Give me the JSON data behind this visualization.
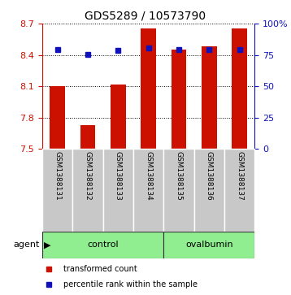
{
  "title": "GDS5289 / 10573790",
  "samples": [
    "GSM1388131",
    "GSM1388132",
    "GSM1388133",
    "GSM1388134",
    "GSM1388135",
    "GSM1388136",
    "GSM1388137"
  ],
  "bar_values": [
    8.1,
    7.73,
    8.12,
    8.65,
    8.45,
    8.48,
    8.65
  ],
  "bar_base": 7.5,
  "blue_values_left": [
    8.45,
    8.405,
    8.44,
    8.465,
    8.455,
    8.455,
    8.45
  ],
  "ylim_left": [
    7.5,
    8.7
  ],
  "ylim_right": [
    0,
    100
  ],
  "yticks_left": [
    7.5,
    7.8,
    8.1,
    8.4,
    8.7
  ],
  "yticks_right": [
    0,
    25,
    50,
    75,
    100
  ],
  "ytick_labels_right": [
    "0",
    "25",
    "50",
    "75",
    "100%"
  ],
  "bar_color": "#cc1100",
  "blue_color": "#1111bb",
  "group_labels": [
    "control",
    "ovalbumin"
  ],
  "agent_label": "agent",
  "legend_bar_label": "transformed count",
  "legend_blue_label": "percentile rank within the sample",
  "gray_bg": "#c8c8c8",
  "green_bg": "#90ee90",
  "title_fontsize": 10,
  "sample_fontsize": 6.5,
  "group_fontsize": 8,
  "legend_fontsize": 7,
  "agent_fontsize": 8
}
